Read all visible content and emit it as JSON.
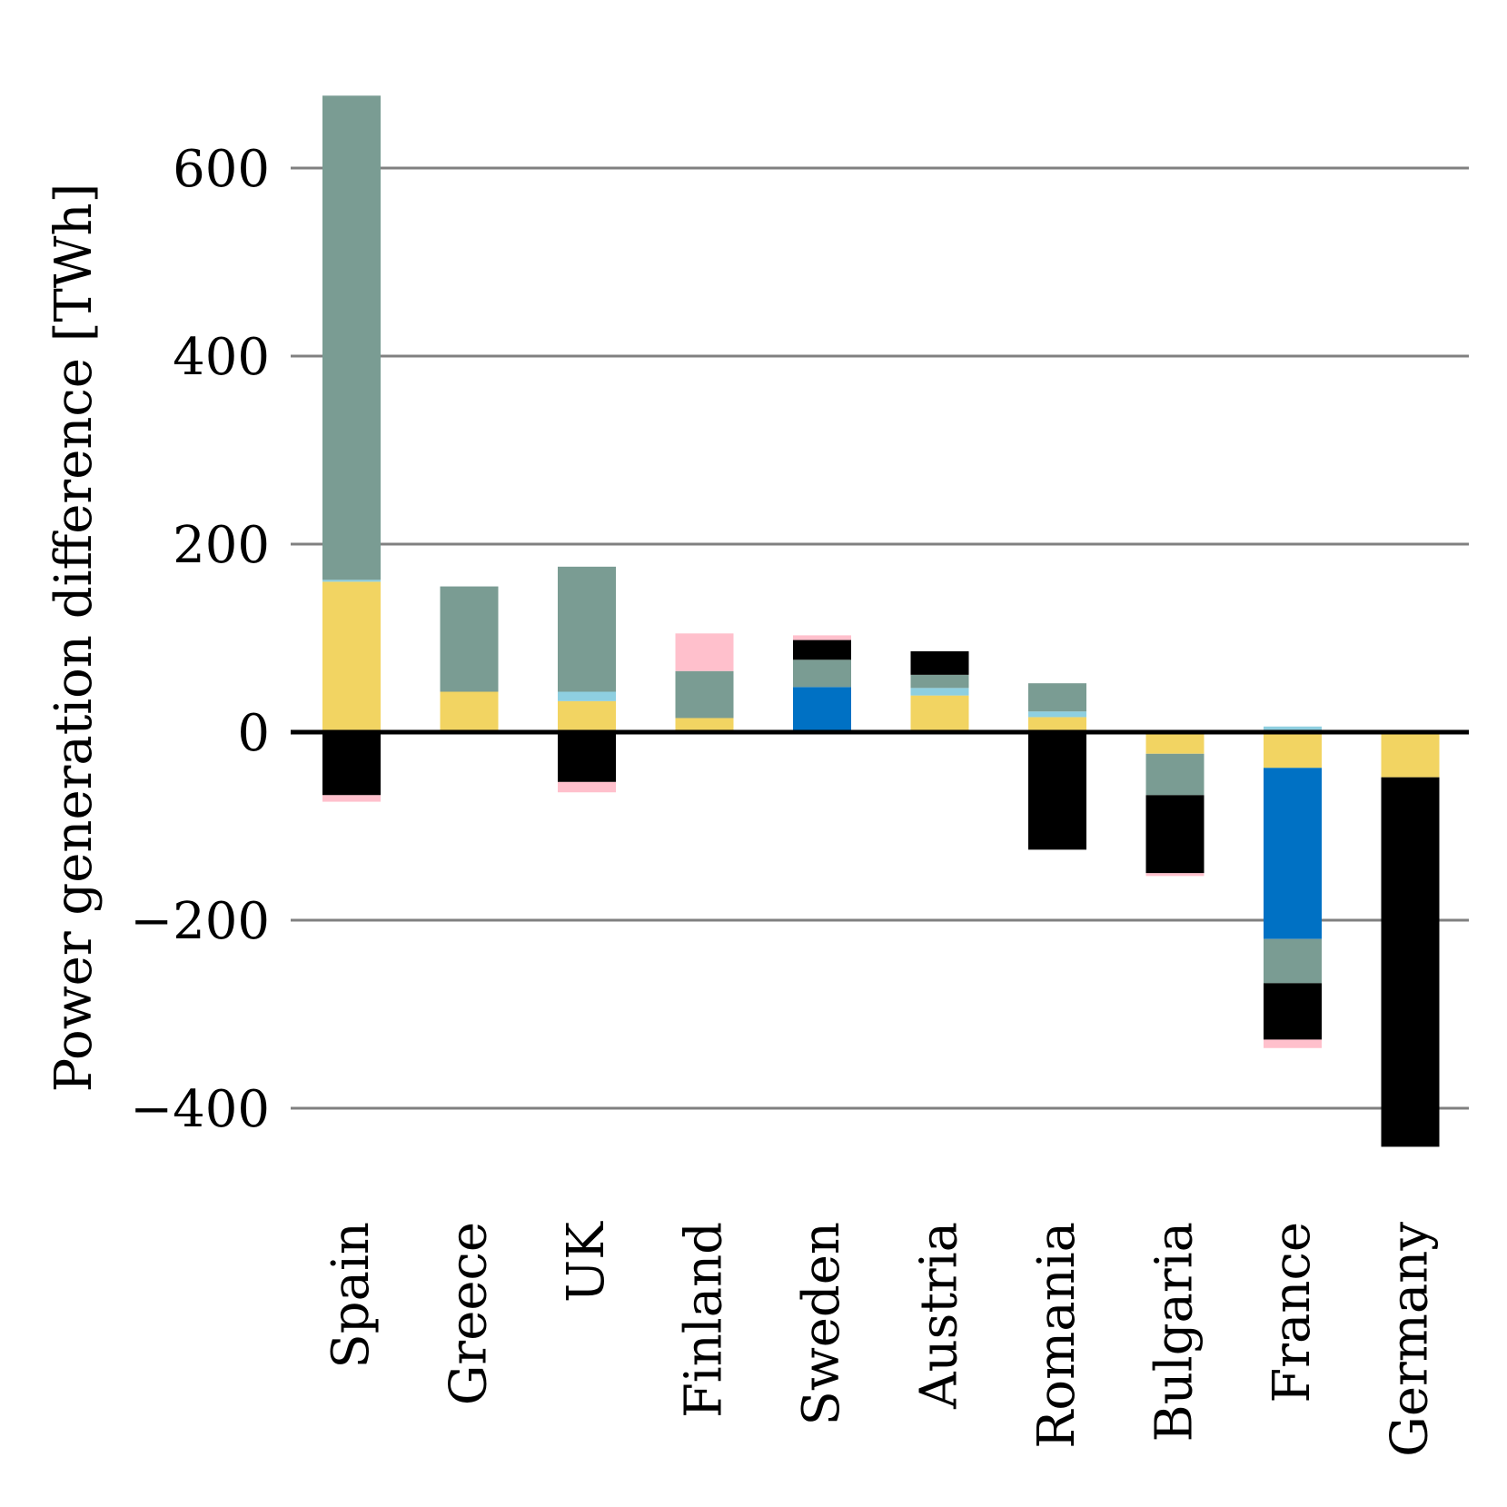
{
  "chart_data": {
    "type": "bar",
    "stacked": true,
    "title": "",
    "xlabel": "",
    "ylabel": "Power generation difference [TWh]",
    "ylim": [
      -450,
      680
    ],
    "yticks": [
      -400,
      -200,
      0,
      200,
      400,
      600
    ],
    "ytick_labels": [
      "−400",
      "−200",
      "0",
      "200",
      "400",
      "600"
    ],
    "grid": true,
    "categories": [
      "Spain",
      "Greece",
      "UK",
      "Finland",
      "Sweden",
      "Austria",
      "Romania",
      "Bulgaria",
      "France",
      "Germany"
    ],
    "colors": {
      "solar": "#f2d462",
      "wind": "#7a9c93",
      "offwind": "#8ecfe0",
      "hydro": "#0071c4",
      "fossil": "#000000",
      "biomass": "#ffc0cc"
    },
    "series": [
      {
        "key": "solar",
        "values": [
          160,
          43,
          33,
          15,
          0,
          39,
          16,
          -23,
          -38,
          -48
        ]
      },
      {
        "key": "offwind",
        "values": [
          2,
          0,
          10,
          0,
          0,
          8,
          6,
          0,
          6,
          0
        ]
      },
      {
        "key": "hydro",
        "values": [
          0,
          0,
          0,
          0,
          48,
          0,
          0,
          0,
          -182,
          0
        ]
      },
      {
        "key": "wind",
        "values": [
          515,
          112,
          133,
          50,
          29,
          14,
          30,
          -44,
          -47,
          0
        ]
      },
      {
        "key": "fossil",
        "values": [
          -67,
          0,
          -53,
          0,
          21,
          25,
          -125,
          -83,
          -60,
          -393
        ]
      },
      {
        "key": "biomass",
        "values": [
          -7,
          0,
          -11,
          40,
          5,
          0,
          0,
          -3,
          -9,
          0
        ]
      }
    ]
  }
}
